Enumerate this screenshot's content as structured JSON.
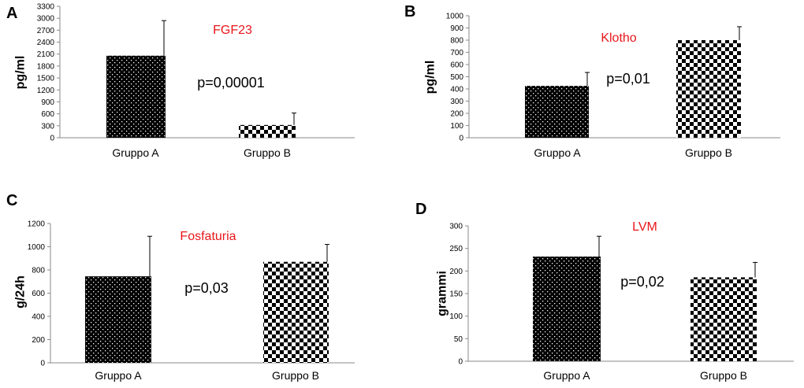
{
  "colors": {
    "title": "#e8161b",
    "bar_fill": "#000000",
    "axis": "#8a8a8a"
  },
  "chart_data": [
    {
      "panel": "A",
      "type": "bar",
      "title": "FGF23",
      "ylabel": "pg/ml",
      "categories": [
        "Gruppo A",
        "Gruppo B"
      ],
      "values": [
        2060,
        320
      ],
      "error": [
        880,
        300
      ],
      "patterns": [
        "dots",
        "checker"
      ],
      "ylim": [
        0,
        3300
      ],
      "yticks": [
        0,
        300,
        600,
        900,
        1200,
        1500,
        1800,
        2100,
        2400,
        2700,
        3000,
        3300
      ],
      "pvalue": "p=0,00001"
    },
    {
      "panel": "B",
      "type": "bar",
      "title": "Klotho",
      "ylabel": "pg/ml",
      "categories": [
        "Gruppo A",
        "Gruppo B"
      ],
      "values": [
        425,
        800
      ],
      "error": [
        110,
        110
      ],
      "patterns": [
        "dots",
        "checker"
      ],
      "ylim": [
        0,
        1000
      ],
      "yticks": [
        0,
        100,
        200,
        300,
        400,
        500,
        600,
        700,
        800,
        900,
        1000
      ],
      "pvalue": "p=0,01"
    },
    {
      "panel": "C",
      "type": "bar",
      "title": "Fosfaturia",
      "ylabel": "g/24h",
      "categories": [
        "Gruppo A",
        "Gruppo B"
      ],
      "values": [
        745,
        870
      ],
      "error": [
        345,
        150
      ],
      "patterns": [
        "dots",
        "checker"
      ],
      "ylim": [
        0,
        1200
      ],
      "yticks": [
        0,
        200,
        400,
        600,
        800,
        1000,
        1200
      ],
      "pvalue": "p=0,03"
    },
    {
      "panel": "D",
      "type": "bar",
      "title": "LVM",
      "ylabel": "grammi",
      "categories": [
        "Gruppo A",
        "Gruppo B"
      ],
      "values": [
        232,
        186
      ],
      "error": [
        45,
        33
      ],
      "patterns": [
        "dots",
        "checker"
      ],
      "ylim": [
        0,
        300
      ],
      "yticks": [
        0,
        50,
        100,
        150,
        200,
        250,
        300
      ],
      "pvalue": "p=0,02"
    }
  ]
}
